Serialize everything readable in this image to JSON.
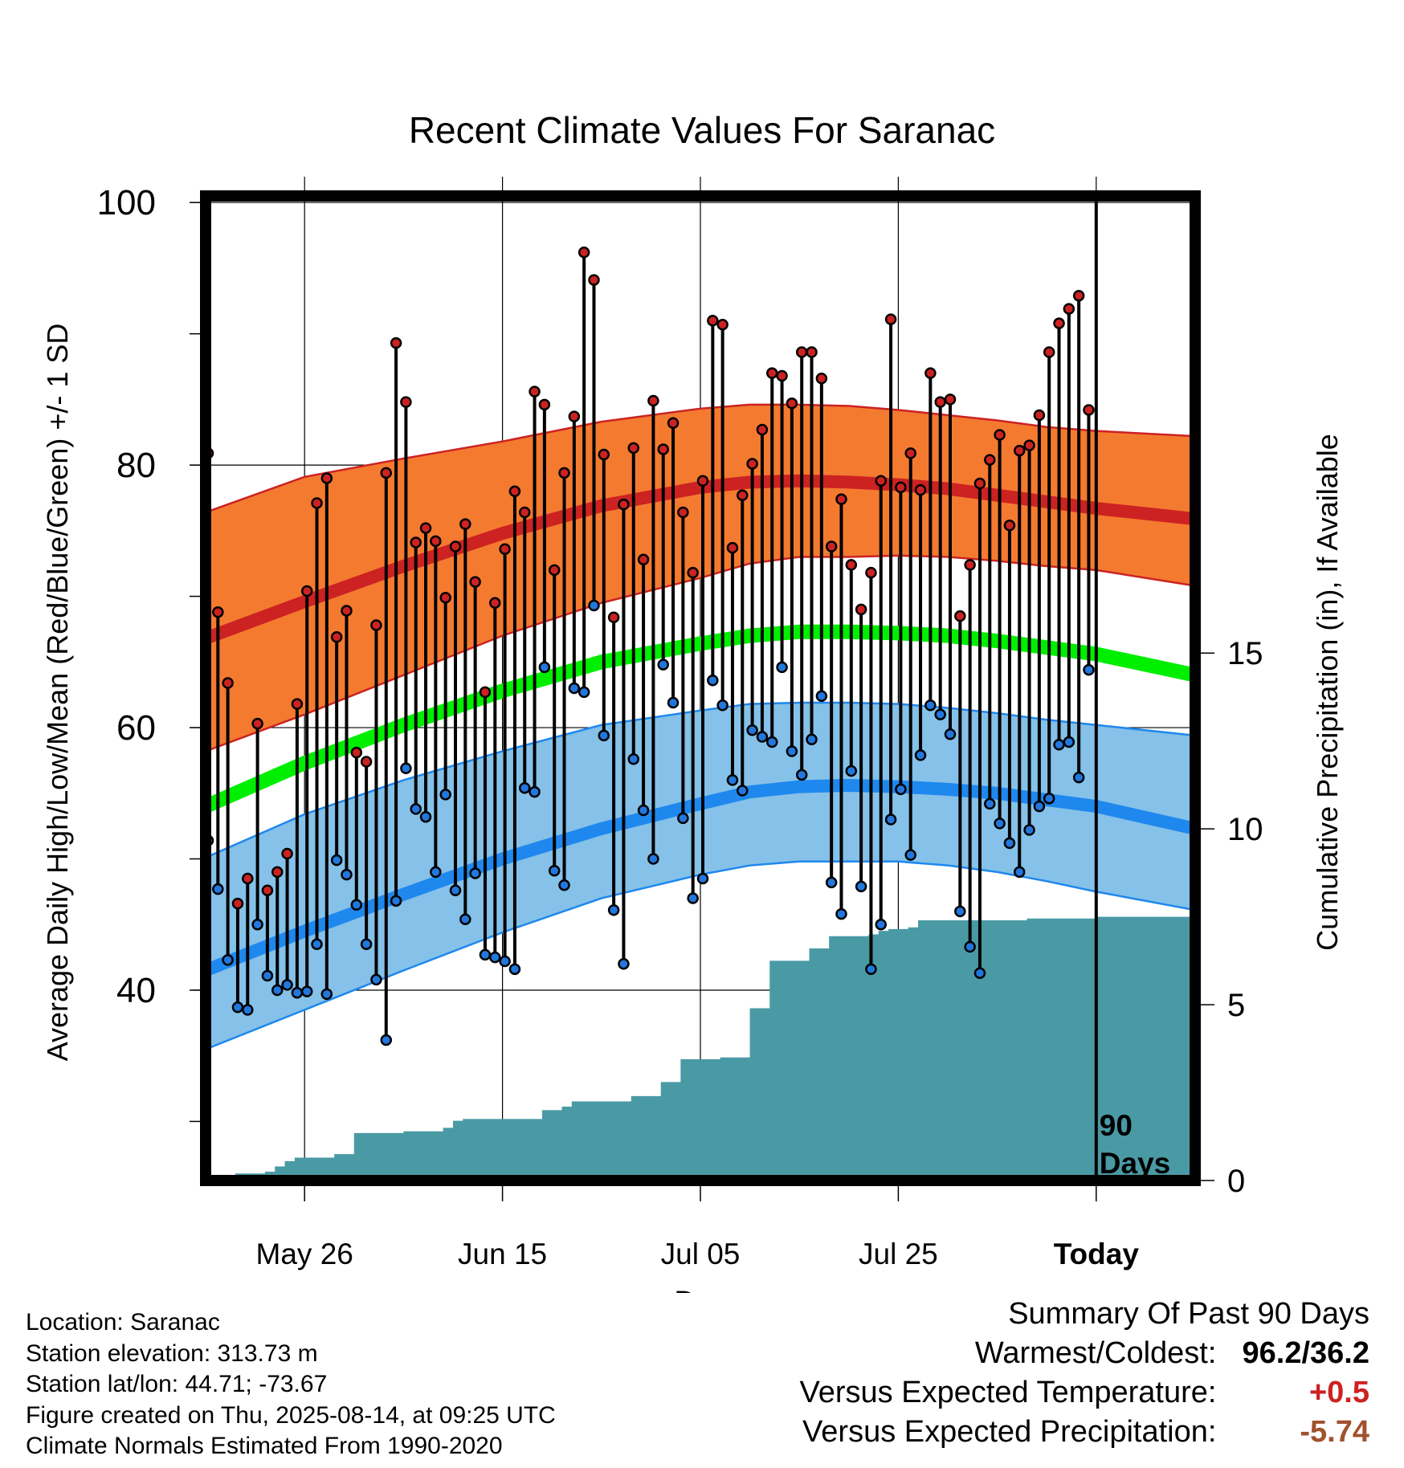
{
  "chart_data": {
    "type": "line",
    "title": "Recent Climate Values For Saranac",
    "xlabel": "Day",
    "ylabel": "Average Daily High/Low/Mean (Red/Blue/Green) +/- 1 SD",
    "y2label": "Cumulative Precipitation (in), If Available",
    "ylim": [
      25.5,
      100.5
    ],
    "y2lim": [
      0,
      28
    ],
    "yticks": [
      40,
      60,
      80,
      100
    ],
    "y2ticks": [
      0,
      5,
      10,
      15
    ],
    "xlim": [
      0,
      100
    ],
    "xticks": [
      {
        "day": 10,
        "label": "May 26"
      },
      {
        "day": 30,
        "label": "Jun 15"
      },
      {
        "day": 50,
        "label": "Jul 05"
      },
      {
        "day": 70,
        "label": "Jul 25"
      },
      {
        "day": 90,
        "label": "Today"
      }
    ],
    "today_day": 90,
    "today_label": [
      "90",
      "Days"
    ],
    "grid": true,
    "colors": {
      "high": "#cc2222",
      "high_band": "#f47a30",
      "low": "#1e88ee",
      "low_band": "#85c1e8",
      "mean": "#00ee00",
      "precip": "#4a9aa5",
      "high_marker": "#cc2222",
      "low_marker": "#2277dd"
    },
    "normals": {
      "days": [
        0,
        10,
        20,
        30,
        40,
        50,
        55,
        60,
        65,
        70,
        75,
        80,
        85,
        90,
        100
      ],
      "high_mean": [
        66.8,
        69.6,
        72.3,
        74.8,
        76.9,
        78.3,
        78.7,
        78.8,
        78.7,
        78.5,
        78.2,
        77.7,
        77.2,
        76.7,
        75.9
      ],
      "high_upper": [
        76.4,
        79.1,
        80.5,
        81.8,
        83.3,
        84.3,
        84.6,
        84.6,
        84.5,
        84.2,
        83.8,
        83.4,
        82.9,
        82.6,
        82.2
      ],
      "high_lower": [
        58.2,
        61.0,
        64.0,
        67.0,
        69.5,
        71.4,
        72.5,
        73.0,
        73.0,
        73.1,
        73.0,
        72.7,
        72.3,
        72.0,
        70.8
      ],
      "mean": [
        54.0,
        57.3,
        60.2,
        62.8,
        65.0,
        66.4,
        67.0,
        67.3,
        67.3,
        67.2,
        67.0,
        66.6,
        66.1,
        65.6,
        64.0
      ],
      "low_mean": [
        41.5,
        44.5,
        47.3,
        50.0,
        52.3,
        54.2,
        55.1,
        55.5,
        55.6,
        55.5,
        55.3,
        55.0,
        54.5,
        54.0,
        52.3
      ],
      "low_upper": [
        50.1,
        53.4,
        56.0,
        58.2,
        60.2,
        61.3,
        61.8,
        61.9,
        61.9,
        61.8,
        61.5,
        61.1,
        60.6,
        60.2,
        59.4
      ],
      "low_lower": [
        35.5,
        38.5,
        41.5,
        44.4,
        47.0,
        48.8,
        49.5,
        49.8,
        49.8,
        49.8,
        49.5,
        49.0,
        48.3,
        47.5,
        46.1
      ]
    },
    "daily": [
      {
        "day": 0,
        "high": 80.9,
        "low": 51.4
      },
      {
        "day": 1,
        "high": 68.8,
        "low": 47.7
      },
      {
        "day": 2,
        "high": 63.4,
        "low": 42.3
      },
      {
        "day": 3,
        "high": 46.6,
        "low": 38.7
      },
      {
        "day": 4,
        "high": 48.5,
        "low": 38.5
      },
      {
        "day": 5,
        "high": 60.3,
        "low": 45.0
      },
      {
        "day": 6,
        "high": 47.6,
        "low": 41.1
      },
      {
        "day": 7,
        "high": 49.0,
        "low": 40.0
      },
      {
        "day": 8,
        "high": 50.4,
        "low": 40.4
      },
      {
        "day": 9,
        "high": 61.8,
        "low": 39.8
      },
      {
        "day": 10,
        "high": 70.4,
        "low": 39.9
      },
      {
        "day": 11,
        "high": 77.1,
        "low": 43.5
      },
      {
        "day": 12,
        "high": 79.0,
        "low": 39.7
      },
      {
        "day": 13,
        "high": 66.9,
        "low": 49.9
      },
      {
        "day": 14,
        "high": 68.9,
        "low": 48.8
      },
      {
        "day": 15,
        "high": 58.1,
        "low": 46.5
      },
      {
        "day": 16,
        "high": 57.4,
        "low": 43.5
      },
      {
        "day": 17,
        "high": 67.8,
        "low": 40.8
      },
      {
        "day": 18,
        "high": 79.4,
        "low": 36.2
      },
      {
        "day": 19,
        "high": 89.3,
        "low": 46.8
      },
      {
        "day": 20,
        "high": 84.8,
        "low": 56.9
      },
      {
        "day": 21,
        "high": 74.1,
        "low": 53.8
      },
      {
        "day": 22,
        "high": 75.2,
        "low": 53.2
      },
      {
        "day": 23,
        "high": 74.2,
        "low": 49.0
      },
      {
        "day": 24,
        "high": 69.9,
        "low": 54.9
      },
      {
        "day": 25,
        "high": 73.8,
        "low": 47.6
      },
      {
        "day": 26,
        "high": 75.5,
        "low": 45.4
      },
      {
        "day": 27,
        "high": 71.1,
        "low": 48.9
      },
      {
        "day": 28,
        "high": 62.7,
        "low": 42.7
      },
      {
        "day": 29,
        "high": 69.5,
        "low": 42.5
      },
      {
        "day": 30,
        "high": 73.6,
        "low": 42.2
      },
      {
        "day": 31,
        "high": 78.0,
        "low": 41.6
      },
      {
        "day": 32,
        "high": 76.4,
        "low": 55.4
      },
      {
        "day": 33,
        "high": 85.6,
        "low": 55.1
      },
      {
        "day": 34,
        "high": 84.6,
        "low": 64.6
      },
      {
        "day": 35,
        "high": 72.0,
        "low": 49.1
      },
      {
        "day": 36,
        "high": 79.4,
        "low": 48.0
      },
      {
        "day": 37,
        "high": 83.7,
        "low": 63.0
      },
      {
        "day": 38,
        "high": 96.2,
        "low": 62.7
      },
      {
        "day": 39,
        "high": 94.1,
        "low": 69.3
      },
      {
        "day": 40,
        "high": 80.8,
        "low": 59.4
      },
      {
        "day": 41,
        "high": 68.4,
        "low": 46.1
      },
      {
        "day": 42,
        "high": 77.0,
        "low": 42.0
      },
      {
        "day": 43,
        "high": 81.3,
        "low": 57.6
      },
      {
        "day": 44,
        "high": 72.8,
        "low": 53.7
      },
      {
        "day": 45,
        "high": 84.9,
        "low": 50.0
      },
      {
        "day": 46,
        "high": 81.2,
        "low": 64.8
      },
      {
        "day": 47,
        "high": 83.2,
        "low": 61.9
      },
      {
        "day": 48,
        "high": 76.4,
        "low": 53.1
      },
      {
        "day": 49,
        "high": 71.8,
        "low": 47.0
      },
      {
        "day": 50,
        "high": 78.8,
        "low": 48.5
      },
      {
        "day": 51,
        "high": 91.0,
        "low": 63.6
      },
      {
        "day": 52,
        "high": 90.7,
        "low": 61.7
      },
      {
        "day": 53,
        "high": 73.7,
        "low": 56.0
      },
      {
        "day": 54,
        "high": 77.7,
        "low": 55.2
      },
      {
        "day": 55,
        "high": 80.1,
        "low": 59.8
      },
      {
        "day": 56,
        "high": 82.7,
        "low": 59.3
      },
      {
        "day": 57,
        "high": 87.0,
        "low": 58.9
      },
      {
        "day": 58,
        "high": 86.8,
        "low": 64.6
      },
      {
        "day": 59,
        "high": 84.7,
        "low": 58.2
      },
      {
        "day": 60,
        "high": 88.6,
        "low": 56.4
      },
      {
        "day": 61,
        "high": 88.6,
        "low": 59.1
      },
      {
        "day": 62,
        "high": 86.6,
        "low": 62.4
      },
      {
        "day": 63,
        "high": 73.8,
        "low": 48.2
      },
      {
        "day": 64,
        "high": 77.4,
        "low": 45.8
      },
      {
        "day": 65,
        "high": 72.4,
        "low": 56.7
      },
      {
        "day": 66,
        "high": 69.0,
        "low": 47.9
      },
      {
        "day": 67,
        "high": 71.8,
        "low": 41.6
      },
      {
        "day": 68,
        "high": 78.8,
        "low": 45.0
      },
      {
        "day": 69,
        "high": 91.1,
        "low": 53.0
      },
      {
        "day": 70,
        "high": 78.3,
        "low": 55.3
      },
      {
        "day": 71,
        "high": 80.9,
        "low": 50.3
      },
      {
        "day": 72,
        "high": 78.1,
        "low": 57.9
      },
      {
        "day": 73,
        "high": 87.0,
        "low": 61.7
      },
      {
        "day": 74,
        "high": 84.8,
        "low": 61.0
      },
      {
        "day": 75,
        "high": 85.0,
        "low": 59.5
      },
      {
        "day": 76,
        "high": 68.5,
        "low": 46.0
      },
      {
        "day": 77,
        "high": 72.4,
        "low": 43.3
      },
      {
        "day": 78,
        "high": 78.6,
        "low": 41.3
      },
      {
        "day": 79,
        "high": 80.4,
        "low": 54.2
      },
      {
        "day": 80,
        "high": 82.3,
        "low": 52.7
      },
      {
        "day": 81,
        "high": 75.4,
        "low": 51.2
      },
      {
        "day": 82,
        "high": 81.1,
        "low": 49.0
      },
      {
        "day": 83,
        "high": 81.5,
        "low": 52.2
      },
      {
        "day": 84,
        "high": 83.8,
        "low": 54.0
      },
      {
        "day": 85,
        "high": 88.6,
        "low": 54.6
      },
      {
        "day": 86,
        "high": 90.8,
        "low": 58.7
      },
      {
        "day": 87,
        "high": 91.9,
        "low": 58.9
      },
      {
        "day": 88,
        "high": 92.9,
        "low": 56.2
      },
      {
        "day": 89,
        "high": 84.2,
        "low": 64.4
      }
    ],
    "precip_cumulative": [
      {
        "day": 0,
        "value": 0.0
      },
      {
        "day": 1,
        "value": 0.15
      },
      {
        "day": 3,
        "value": 0.2
      },
      {
        "day": 6,
        "value": 0.25
      },
      {
        "day": 7,
        "value": 0.4
      },
      {
        "day": 8,
        "value": 0.55
      },
      {
        "day": 9,
        "value": 0.65
      },
      {
        "day": 13,
        "value": 0.75
      },
      {
        "day": 15,
        "value": 1.35
      },
      {
        "day": 20,
        "value": 1.4
      },
      {
        "day": 24,
        "value": 1.5
      },
      {
        "day": 25,
        "value": 1.7
      },
      {
        "day": 26,
        "value": 1.75
      },
      {
        "day": 34,
        "value": 2.0
      },
      {
        "day": 36,
        "value": 2.1
      },
      {
        "day": 37,
        "value": 2.25
      },
      {
        "day": 43,
        "value": 2.4
      },
      {
        "day": 46,
        "value": 2.8
      },
      {
        "day": 48,
        "value": 3.45
      },
      {
        "day": 52,
        "value": 3.5
      },
      {
        "day": 55,
        "value": 4.9
      },
      {
        "day": 57,
        "value": 6.25
      },
      {
        "day": 61,
        "value": 6.6
      },
      {
        "day": 63,
        "value": 6.95
      },
      {
        "day": 67,
        "value": 7.0
      },
      {
        "day": 68,
        "value": 7.1
      },
      {
        "day": 69,
        "value": 7.15
      },
      {
        "day": 71,
        "value": 7.2
      },
      {
        "day": 72,
        "value": 7.4
      },
      {
        "day": 83,
        "value": 7.45
      },
      {
        "day": 90,
        "value": 7.5
      },
      {
        "day": 100,
        "value": 7.5
      }
    ]
  },
  "info": {
    "location": "Location: Saranac",
    "elevation": "Station elevation: 313.73 m",
    "latlon": "Station lat/lon: 44.71; -73.67",
    "created": "Figure created on Thu, 2025-08-14, at 09:25 UTC",
    "normals": "Climate Normals Estimated From 1990-2020"
  },
  "summary": {
    "heading": "Summary Of Past 90 Days",
    "warmest_label": "Warmest/Coldest:",
    "warmest_value": "96.2/36.2",
    "temp_label": "Versus Expected Temperature:",
    "temp_value": "+0.5",
    "temp_color": "#cc2222",
    "precip_label": "Versus Expected Precipitation:",
    "precip_value": "-5.74",
    "precip_color": "#a0522d"
  }
}
